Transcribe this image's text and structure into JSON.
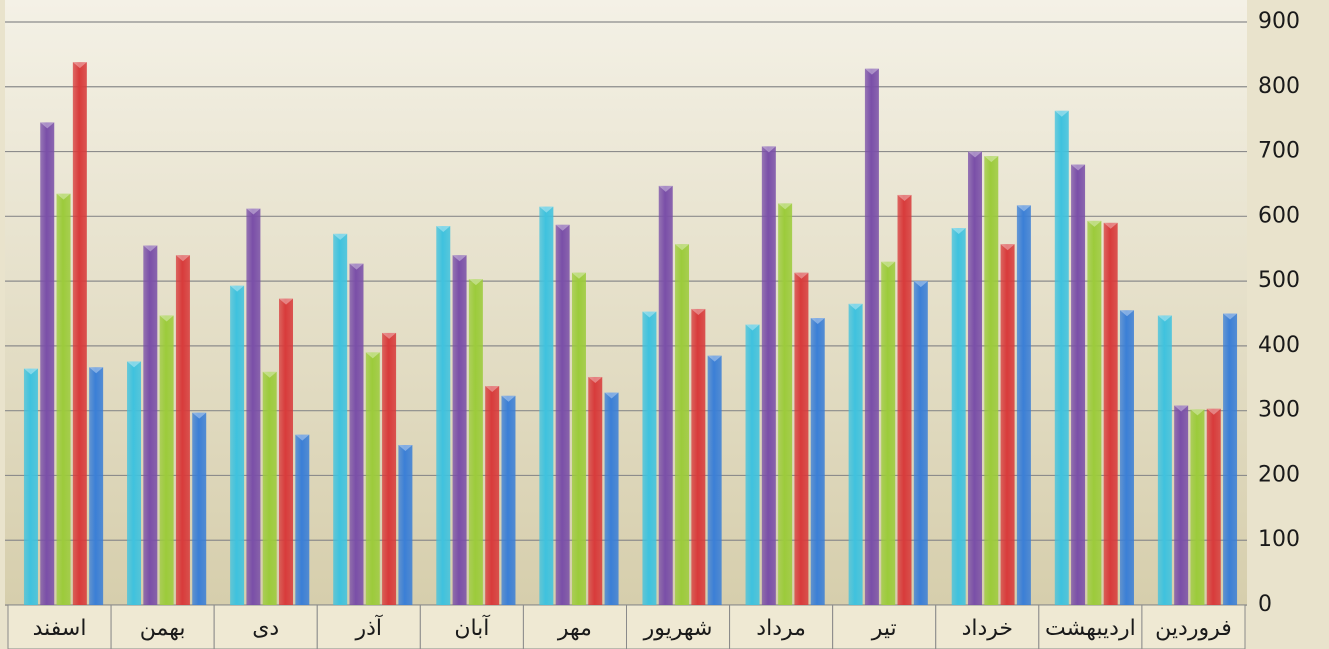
{
  "chart_data": {
    "type": "bar",
    "categories": [
      "اسفند",
      "بهمن",
      "دی",
      "آذر",
      "آبان",
      "مهر",
      "شهریور",
      "مرداد",
      "تیر",
      "خرداد",
      "اردیبهشت",
      "فروردین"
    ],
    "series": [
      {
        "color": "#3fc2de",
        "values": [
          365,
          376,
          493,
          573,
          585,
          615,
          453,
          433,
          465,
          582,
          763,
          447
        ]
      },
      {
        "color": "#7a4fa8",
        "values": [
          745,
          555,
          612,
          527,
          540,
          587,
          647,
          708,
          828,
          700,
          680,
          308
        ]
      },
      {
        "color": "#9ccb3b",
        "values": [
          635,
          447,
          360,
          390,
          503,
          513,
          557,
          620,
          530,
          693,
          593,
          302
        ]
      },
      {
        "color": "#d83b3b",
        "values": [
          838,
          540,
          473,
          420,
          338,
          352,
          457,
          513,
          633,
          557,
          590,
          303
        ]
      },
      {
        "color": "#3b7fd6",
        "values": [
          367,
          297,
          263,
          247,
          323,
          328,
          385,
          443,
          500,
          617,
          455,
          450
        ]
      }
    ],
    "ylim": [
      0,
      900
    ],
    "yticks": [
      0,
      100,
      200,
      300,
      400,
      500,
      600,
      700,
      800,
      900
    ],
    "grid": true
  }
}
